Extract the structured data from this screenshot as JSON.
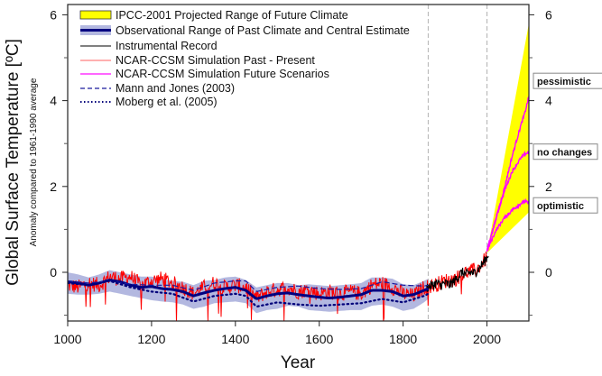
{
  "chart_data": {
    "type": "line",
    "title": "",
    "xlabel": "Year",
    "ylabel": "Global Surface Temperature [ºC]",
    "ylabel_sub": "Anomaly compared to 1961-1990 average",
    "xlim": [
      1000,
      2100
    ],
    "ylim": [
      -1.15,
      6.2
    ],
    "x_ticks": [
      1000,
      1200,
      1400,
      1600,
      1800,
      2000
    ],
    "x_tick_labels": [
      "1000",
      "1200",
      "1400",
      "1600",
      "1800",
      "2000"
    ],
    "y_ticks_major": [
      0,
      2,
      4,
      6
    ],
    "y_tick_labels": [
      "0",
      "2",
      "4",
      "6"
    ],
    "y_ticks_minor": [
      -1,
      1,
      3,
      5
    ],
    "right_axis_mirrored": true,
    "grid": false,
    "vertical_reference_lines": [
      1860,
      2000
    ],
    "legend_position": "top-left",
    "legend": [
      {
        "label": "IPCC-2001 Projected Range of Future Climate",
        "style": "yellow-box"
      },
      {
        "label": "Observational Range of Past Climate and Central Estimate",
        "style": "band"
      },
      {
        "label": "Instrumental Record",
        "style": "black-line"
      },
      {
        "label": "NCAR-CCSM Simulation Past - Present",
        "style": "red-line"
      },
      {
        "label": "NCAR-CCSM Simulation Future Scenarios",
        "style": "magenta-line"
      },
      {
        "label": "Mann and Jones (2003)",
        "style": "dashed-navy"
      },
      {
        "label": "Moberg et al. (2005)",
        "style": "dotted-navy"
      }
    ],
    "colors": {
      "ipcc": "#ffff00",
      "band": "#b3b8e0",
      "central": "#000080",
      "instrumental": "#000000",
      "ncar_past": "#ff0000",
      "ncar_future": "#ff00ff",
      "mann": "#1a1a9e",
      "moberg": "#00007a",
      "refline": "#bbbbbb"
    },
    "series": [
      {
        "name": "Observational Range of Past Climate (band)",
        "x": [
          1000,
          1025,
          1050,
          1075,
          1100,
          1125,
          1150,
          1175,
          1200,
          1225,
          1250,
          1275,
          1300,
          1325,
          1350,
          1375,
          1400,
          1425,
          1450,
          1475,
          1500,
          1525,
          1550,
          1575,
          1600,
          1625,
          1650,
          1675,
          1700,
          1725,
          1750,
          1775,
          1800,
          1825,
          1850,
          1860
        ],
        "lower": [
          -0.5,
          -0.52,
          -0.52,
          -0.5,
          -0.45,
          -0.5,
          -0.55,
          -0.6,
          -0.65,
          -0.68,
          -0.7,
          -0.75,
          -0.85,
          -0.8,
          -0.72,
          -0.7,
          -0.68,
          -0.72,
          -0.95,
          -0.88,
          -0.85,
          -0.78,
          -0.8,
          -0.88,
          -0.9,
          -0.92,
          -0.9,
          -0.88,
          -0.88,
          -0.78,
          -0.75,
          -0.8,
          -0.9,
          -0.85,
          -0.7,
          -0.62
        ],
        "upper": [
          0.0,
          -0.05,
          -0.12,
          -0.05,
          0.05,
          0.0,
          -0.05,
          -0.1,
          -0.1,
          -0.15,
          -0.2,
          -0.22,
          -0.3,
          -0.2,
          -0.18,
          -0.12,
          -0.1,
          -0.18,
          -0.35,
          -0.3,
          -0.25,
          -0.25,
          -0.3,
          -0.28,
          -0.3,
          -0.32,
          -0.3,
          -0.28,
          -0.25,
          -0.12,
          -0.12,
          -0.15,
          -0.28,
          -0.3,
          -0.2,
          -0.15
        ]
      },
      {
        "name": "Central Estimate",
        "x": [
          1000,
          1025,
          1050,
          1075,
          1100,
          1125,
          1150,
          1175,
          1200,
          1225,
          1250,
          1275,
          1300,
          1325,
          1350,
          1375,
          1400,
          1425,
          1450,
          1475,
          1500,
          1525,
          1550,
          1575,
          1600,
          1625,
          1650,
          1675,
          1700,
          1725,
          1750,
          1775,
          1800,
          1825,
          1850,
          1860
        ],
        "y": [
          -0.22,
          -0.25,
          -0.3,
          -0.25,
          -0.18,
          -0.22,
          -0.3,
          -0.35,
          -0.33,
          -0.38,
          -0.4,
          -0.45,
          -0.55,
          -0.48,
          -0.42,
          -0.38,
          -0.35,
          -0.42,
          -0.62,
          -0.55,
          -0.5,
          -0.48,
          -0.52,
          -0.55,
          -0.58,
          -0.6,
          -0.58,
          -0.55,
          -0.52,
          -0.42,
          -0.42,
          -0.45,
          -0.55,
          -0.52,
          -0.42,
          -0.38
        ]
      },
      {
        "name": "Mann and Jones (2003)",
        "x": [
          1000,
          1050,
          1100,
          1150,
          1200,
          1250,
          1300,
          1350,
          1400,
          1425,
          1450,
          1500,
          1550,
          1600,
          1650,
          1700,
          1750,
          1800,
          1850,
          1860
        ],
        "y": [
          -0.2,
          -0.25,
          -0.2,
          -0.28,
          -0.3,
          -0.3,
          -0.42,
          -0.25,
          -0.2,
          -0.2,
          -0.45,
          -0.35,
          -0.32,
          -0.38,
          -0.4,
          -0.38,
          -0.22,
          -0.3,
          -0.32,
          -0.3
        ]
      },
      {
        "name": "Moberg et al. (2005)",
        "x": [
          1000,
          1050,
          1100,
          1150,
          1200,
          1250,
          1300,
          1350,
          1400,
          1425,
          1450,
          1500,
          1550,
          1600,
          1650,
          1700,
          1750,
          1800,
          1850,
          1860
        ],
        "y": [
          -0.25,
          -0.3,
          -0.2,
          -0.35,
          -0.45,
          -0.5,
          -0.68,
          -0.55,
          -0.5,
          -0.55,
          -0.8,
          -0.7,
          -0.75,
          -0.78,
          -0.75,
          -0.72,
          -0.62,
          -0.7,
          -0.55,
          -0.5
        ]
      },
      {
        "name": "NCAR-CCSM Simulation Past - Present",
        "x": [
          1000,
          1025,
          1050,
          1075,
          1100,
          1125,
          1150,
          1175,
          1200,
          1225,
          1250,
          1275,
          1300,
          1325,
          1350,
          1375,
          1400,
          1425,
          1450,
          1475,
          1500,
          1525,
          1550,
          1575,
          1600,
          1625,
          1650,
          1675,
          1700,
          1725,
          1750,
          1775,
          1800,
          1825,
          1850,
          1875,
          1900,
          1925,
          1950,
          1975,
          2000
        ],
        "y": [
          -0.3,
          -0.35,
          -0.25,
          -0.3,
          -0.1,
          -0.15,
          -0.1,
          -0.3,
          -0.2,
          -0.15,
          -0.25,
          -0.35,
          -0.5,
          -0.35,
          -0.25,
          -0.35,
          -0.3,
          -0.35,
          -0.6,
          -0.45,
          -0.4,
          -0.35,
          -0.45,
          -0.4,
          -0.5,
          -0.45,
          -0.5,
          -0.45,
          -0.5,
          -0.3,
          -0.25,
          -0.35,
          -0.5,
          -0.55,
          -0.35,
          -0.3,
          -0.2,
          -0.15,
          0.0,
          0.05,
          0.35
        ],
        "noise_amplitude": 0.18
      },
      {
        "name": "Instrumental Record",
        "x": [
          1856,
          1870,
          1880,
          1890,
          1900,
          1910,
          1920,
          1930,
          1940,
          1950,
          1960,
          1970,
          1980,
          1990,
          2000,
          2004
        ],
        "y": [
          -0.35,
          -0.3,
          -0.25,
          -0.3,
          -0.25,
          -0.3,
          -0.22,
          -0.12,
          0.0,
          -0.05,
          0.0,
          -0.02,
          0.08,
          0.2,
          0.35,
          0.45
        ],
        "noise_amplitude": 0.12
      },
      {
        "name": "IPCC-2001 Projected Range",
        "x": [
          2000,
          2100
        ],
        "lower": [
          0.45,
          1.4
        ],
        "upper": [
          0.45,
          5.8
        ]
      },
      {
        "name": "NCAR-CCSM Future: pessimistic",
        "x": [
          2000,
          2020,
          2040,
          2060,
          2080,
          2090,
          2100
        ],
        "y": [
          0.5,
          1.2,
          1.9,
          2.7,
          3.4,
          3.7,
          4.1
        ]
      },
      {
        "name": "NCAR-CCSM Future: no changes",
        "x": [
          2000,
          2020,
          2040,
          2060,
          2080,
          2090,
          2100
        ],
        "y": [
          0.5,
          1.2,
          1.85,
          2.35,
          2.65,
          2.75,
          2.8
        ]
      },
      {
        "name": "NCAR-CCSM Future: optimistic",
        "x": [
          2000,
          2020,
          2040,
          2060,
          2080,
          2090,
          2100
        ],
        "y": [
          0.5,
          0.95,
          1.25,
          1.45,
          1.6,
          1.65,
          1.6
        ]
      }
    ],
    "annotations": [
      {
        "text": "pessimistic",
        "x": 2100,
        "y": 4.45
      },
      {
        "text": "no changes",
        "x": 2100,
        "y": 2.8
      },
      {
        "text": "optimistic",
        "x": 2100,
        "y": 1.55
      }
    ]
  }
}
